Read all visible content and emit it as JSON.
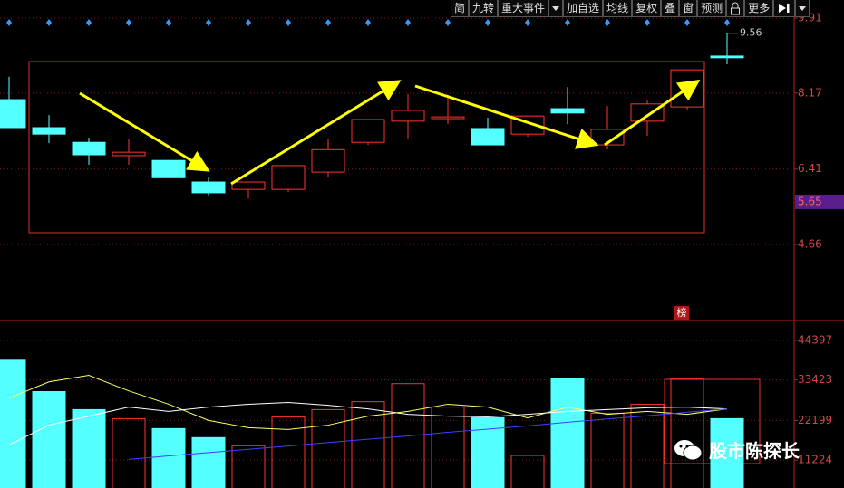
{
  "toolbar": [
    "简",
    "九转",
    "重大事件",
    "加自选",
    "均线",
    "复权",
    "叠",
    "窗",
    "预测",
    "更多"
  ],
  "watermark": "股市陈探长",
  "badge": "榜",
  "chart_data": [
    {
      "type": "candlestick",
      "up_color": "#ff3232",
      "down_color": "#54ffff",
      "open": [
        8.02,
        7.37,
        7.03,
        6.72,
        6.61,
        6.11,
        5.94,
        5.94,
        6.34,
        7.03,
        7.52,
        7.58,
        7.35,
        7.22,
        7.81,
        6.97,
        7.52,
        7.85,
        9.03
      ],
      "close": [
        7.37,
        7.22,
        6.74,
        6.8,
        6.21,
        5.86,
        6.11,
        6.49,
        6.86,
        7.56,
        7.77,
        7.62,
        6.97,
        7.64,
        7.71,
        7.33,
        7.92,
        8.71,
        8.99
      ],
      "high": [
        8.55,
        7.66,
        7.14,
        7.1,
        6.61,
        6.23,
        6.11,
        6.49,
        7.12,
        7.56,
        8.15,
        8.13,
        7.6,
        7.64,
        8.31,
        7.87,
        8.02,
        8.71,
        9.56
      ],
      "low": [
        7.37,
        7.01,
        6.51,
        6.51,
        6.21,
        5.8,
        5.73,
        5.88,
        6.23,
        6.97,
        7.12,
        7.45,
        6.97,
        7.16,
        7.45,
        6.87,
        7.18,
        7.79,
        8.84
      ],
      "ylim": [
        2.92,
        10.33
      ],
      "yticks": [
        9.91,
        8.17,
        6.41,
        4.66
      ],
      "grid": true,
      "high_marker": 9.56,
      "current_price": 5.65
    },
    {
      "type": "volume",
      "up_color": "#ff3232",
      "down_color": "#54ffff",
      "values": [
        38900,
        30200,
        25200,
        22700,
        19950,
        17450,
        15200,
        23200,
        25200,
        27400,
        32400,
        25900,
        22950,
        12500,
        33900,
        24200,
        26700,
        33700,
        22700
      ],
      "ylim": [
        3480,
        49640
      ],
      "yticks": [
        44397,
        33423,
        22199,
        11224
      ],
      "grid": true,
      "lines": [
        {
          "color": "#ffff66",
          "values": [
            28400,
            32900,
            34700,
            30400,
            26700,
            22200,
            20200,
            19700,
            20900,
            23400,
            24700,
            26700,
            25900,
            22900,
            25900,
            23900,
            24700,
            23900,
            25400
          ]
        },
        {
          "color": "#ffffff",
          "values": [
            15400,
            20900,
            23400,
            25900,
            24700,
            25900,
            26700,
            27200,
            26400,
            25400,
            23900,
            23400,
            23200,
            23900,
            24700,
            25200,
            25700,
            25900,
            25400
          ]
        },
        {
          "color": "#4040ff",
          "values": [
            null,
            null,
            null,
            11400,
            12400,
            13300,
            14200,
            15100,
            16100,
            17000,
            17900,
            18900,
            19800,
            20700,
            21700,
            22600,
            23500,
            24500,
            25400
          ]
        }
      ]
    }
  ]
}
